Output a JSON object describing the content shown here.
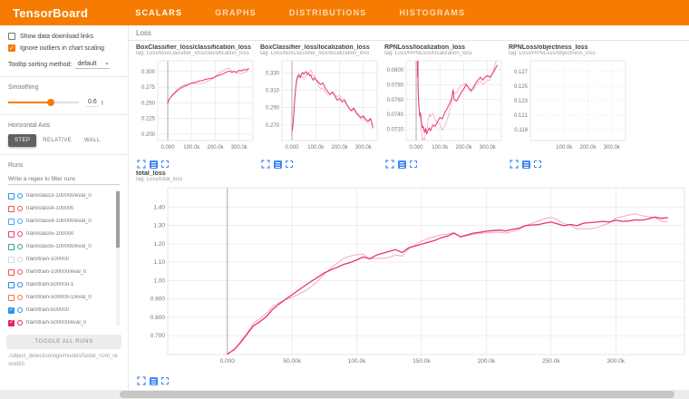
{
  "colors": {
    "accent": "#f57c00",
    "line": "#e8346d",
    "line_raw": "#f5a8c3",
    "icon_blue": "#4285f4"
  },
  "header": {
    "title": "TensorBoard",
    "tabs": [
      {
        "label": "SCALARS",
        "active": true
      },
      {
        "label": "GRAPHS",
        "active": false
      },
      {
        "label": "DISTRIBUTIONS",
        "active": false
      },
      {
        "label": "HISTOGRAMS",
        "active": false
      }
    ]
  },
  "sidebar": {
    "options": [
      {
        "label": "Show data download links",
        "checked": false
      },
      {
        "label": "Ignore outliers in chart scaling",
        "checked": true
      }
    ],
    "tooltip_sort": {
      "label": "Tooltip sorting method:",
      "value": "default"
    },
    "smoothing": {
      "label": "Smoothing",
      "value": "0.6"
    },
    "horizontal_axis": {
      "label": "Horizontal Axis",
      "options": [
        {
          "label": "STEP",
          "active": true
        },
        {
          "label": "RELATIVE",
          "active": false
        },
        {
          "label": "WALL",
          "active": false
        }
      ]
    },
    "runs": {
      "label": "Runs",
      "filter_placeholder": "Write a regex to filter runs",
      "items": [
        {
          "name": "train/class3-100000/eval_0",
          "color": "#2196f3",
          "checked": false
        },
        {
          "name": "train/class4-100000",
          "color": "#ef5350",
          "checked": false
        },
        {
          "name": "train/class4-100000/eval_0",
          "color": "#42a5f5",
          "checked": false
        },
        {
          "name": "train/class5-100000",
          "color": "#ec407a",
          "checked": false
        },
        {
          "name": "train/class5-100000/eval_0",
          "color": "#26a69a",
          "checked": false
        },
        {
          "name": "train/train-100000",
          "color": "#cfd8dc",
          "checked": false
        },
        {
          "name": "train/train-100000/eval_0",
          "color": "#ef5350",
          "checked": false
        },
        {
          "name": "train/train-500000-1",
          "color": "#1e88e5",
          "checked": false
        },
        {
          "name": "train/train-500000-1/eval_0",
          "color": "#ff7043",
          "checked": false
        },
        {
          "name": "train/train-500000",
          "color": "#2196f3",
          "checked": true
        },
        {
          "name": "train/train-500000/eval_0",
          "color": "#e91e63",
          "checked": true
        }
      ],
      "toggle_label": "TOGGLE ALL RUNS",
      "path": "./object_detection/wgs/models/faster_rcnn_resnet50"
    }
  },
  "main": {
    "group_label": "Loss"
  },
  "chart_data": [
    {
      "type": "line",
      "layout": "small",
      "title": "BoxClassifier_loss/classification_loss",
      "tag": "tag: Loss/BoxClassifier_loss/classification_loss",
      "xlabel": "step",
      "ylabel": "loss",
      "xlim": [
        -42,
        358
      ],
      "ylim": [
        0.19,
        0.317
      ],
      "yticks": [
        0.3,
        0.275,
        0.25,
        0.225,
        0.2
      ],
      "ytick_labels": [
        "0.300",
        "0.275",
        "0.250",
        "0.225",
        "0.200"
      ],
      "xticks": [
        0,
        100,
        200,
        300
      ],
      "xtick_labels": [
        "0.000",
        "100.0k",
        "200.0k",
        "300.0k"
      ],
      "jitter": 0.0035,
      "x": [
        0,
        5,
        10,
        20,
        30,
        40,
        55,
        70,
        85,
        100,
        115,
        130,
        145,
        160,
        175,
        190,
        205,
        220,
        235,
        250,
        260,
        270,
        280,
        290,
        300,
        310,
        320,
        330,
        340
      ],
      "y": [
        0.2495,
        0.2545,
        0.2575,
        0.2625,
        0.2655,
        0.2695,
        0.2735,
        0.2765,
        0.2785,
        0.2815,
        0.2825,
        0.2845,
        0.2855,
        0.2875,
        0.2885,
        0.2895,
        0.2925,
        0.2945,
        0.2965,
        0.2995,
        0.3005,
        0.2985,
        0.3,
        0.299,
        0.302,
        0.301,
        0.303,
        0.3025,
        0.3045
      ]
    },
    {
      "type": "line",
      "layout": "small",
      "title": "BoxClassifier_loss/localization_loss",
      "tag": "tag: Loss/BoxClassifier_loss/localization_loss",
      "xlabel": "step",
      "ylabel": "loss",
      "xlim": [
        -42,
        358
      ],
      "ylim": [
        0.252,
        0.344
      ],
      "yticks": [
        0.33,
        0.31,
        0.29,
        0.27
      ],
      "ytick_labels": [
        "0.330",
        "0.310",
        "0.290",
        "0.270"
      ],
      "xticks": [
        0,
        100,
        200,
        300
      ],
      "xtick_labels": [
        "0.000",
        "100.0k",
        "200.0k",
        "300.0k"
      ],
      "jitter": 0.004,
      "x": [
        0,
        3,
        6,
        9,
        12,
        16,
        20,
        25,
        30,
        35,
        40,
        45,
        50,
        55,
        60,
        65,
        70,
        75,
        80,
        85,
        90,
        95,
        100,
        110,
        120,
        130,
        140,
        150,
        160,
        170,
        180,
        190,
        200,
        210,
        220,
        230,
        240,
        250,
        260,
        270,
        280,
        290,
        300,
        310,
        320,
        330,
        335,
        340
      ],
      "y": [
        0.2625,
        0.2665,
        0.2755,
        0.2885,
        0.3005,
        0.3125,
        0.3215,
        0.3255,
        0.3275,
        0.3245,
        0.3285,
        0.3305,
        0.3285,
        0.3305,
        0.3315,
        0.3285,
        0.3295,
        0.3265,
        0.3275,
        0.3235,
        0.3215,
        0.3245,
        0.3225,
        0.3195,
        0.3165,
        0.3185,
        0.3125,
        0.3085,
        0.3055,
        0.3075,
        0.3035,
        0.2985,
        0.3005,
        0.2965,
        0.2985,
        0.2935,
        0.2895,
        0.2865,
        0.2895,
        0.2845,
        0.2815,
        0.2785,
        0.2805,
        0.2765,
        0.2745,
        0.2775,
        0.2725,
        0.2665
      ]
    },
    {
      "type": "line",
      "layout": "small",
      "title": "RPNLoss/localization_loss",
      "tag": "tag: Loss/RPNLoss/localization_loss",
      "xlabel": "step",
      "ylabel": "loss",
      "xlim": [
        -42,
        358
      ],
      "ylim": [
        0.0705,
        0.0812
      ],
      "yticks": [
        0.08,
        0.078,
        0.076,
        0.074,
        0.072
      ],
      "ytick_labels": [
        "0.0800",
        "0.0780",
        "0.0760",
        "0.0740",
        "0.0720"
      ],
      "xticks": [
        0,
        100,
        200,
        300
      ],
      "xtick_labels": [
        "0.000",
        "100.0k",
        "200.0k",
        "300.0k"
      ],
      "jitter": 0.0012,
      "x": [
        0,
        2,
        4,
        5,
        6,
        7,
        8,
        10,
        12,
        15,
        18,
        22,
        26,
        30,
        35,
        40,
        45,
        50,
        55,
        60,
        70,
        80,
        90,
        100,
        110,
        120,
        130,
        140,
        150,
        155,
        160,
        170,
        180,
        190,
        200,
        210,
        220,
        230,
        240,
        250,
        260,
        270,
        280,
        290,
        300,
        310,
        320,
        330,
        340
      ],
      "y": [
        0.086,
        0.098,
        0.082,
        0.096,
        0.079,
        0.09,
        0.0775,
        0.076,
        0.0748,
        0.0738,
        0.0742,
        0.073,
        0.0722,
        0.0724,
        0.0716,
        0.0721,
        0.0714,
        0.0719,
        0.0722,
        0.0718,
        0.0726,
        0.0724,
        0.073,
        0.0736,
        0.0734,
        0.0742,
        0.0748,
        0.0754,
        0.0762,
        0.0772,
        0.076,
        0.0758,
        0.0764,
        0.077,
        0.0774,
        0.078,
        0.0776,
        0.0772,
        0.0776,
        0.0782,
        0.0786,
        0.079,
        0.0786,
        0.079,
        0.0792,
        0.079,
        0.0794,
        0.08,
        0.0806
      ]
    },
    {
      "type": "line",
      "layout": "small",
      "grid_dashed": true,
      "title": "RPNLoss/objectness_loss",
      "tag": "tag: Loss/RPNLoss/objectness_loss",
      "xlabel": "step",
      "ylabel": "loss",
      "xlim": [
        -42,
        358
      ],
      "ylim": [
        0.1175,
        0.1285
      ],
      "yticks": [
        0.127,
        0.125,
        0.123,
        0.121,
        0.119
      ],
      "ytick_labels": [
        "0.127",
        "0.125",
        "0.123",
        "0.121",
        "0.119"
      ],
      "xticks": [
        100,
        200,
        300
      ],
      "xtick_labels": [
        "100.0k",
        "200.0k",
        "300.0k"
      ],
      "jitter": 0,
      "x": [],
      "y": []
    },
    {
      "type": "line",
      "layout": "large",
      "title": "total_loss",
      "tag": "tag: Loss/total_loss",
      "xlabel": "step",
      "ylabel": "loss",
      "xlim": [
        -46,
        353
      ],
      "ylim": [
        0.597,
        1.505
      ],
      "yticks": [
        1.4,
        1.3,
        1.2,
        1.1,
        1.0,
        0.9,
        0.8,
        0.7
      ],
      "ytick_labels": [
        "1.40",
        "1.30",
        "1.20",
        "1.10",
        "1.00",
        "0.900",
        "0.800",
        "0.700"
      ],
      "xticks": [
        0,
        50,
        100,
        150,
        200,
        250,
        300
      ],
      "xtick_labels": [
        "0.000",
        "50.00k",
        "100.0k",
        "150.0k",
        "200.0k",
        "250.0k",
        "300.0k"
      ],
      "jitter": 0.022,
      "x": [
        0,
        5,
        10,
        15,
        20,
        25,
        30,
        35,
        40,
        45,
        50,
        55,
        60,
        65,
        70,
        75,
        80,
        85,
        90,
        95,
        100,
        105,
        110,
        115,
        120,
        125,
        130,
        135,
        140,
        145,
        150,
        155,
        160,
        165,
        170,
        175,
        180,
        185,
        190,
        195,
        200,
        205,
        210,
        215,
        220,
        225,
        230,
        235,
        240,
        245,
        250,
        255,
        260,
        265,
        270,
        275,
        280,
        285,
        290,
        295,
        300,
        305,
        310,
        315,
        320,
        325,
        330,
        335,
        340
      ],
      "y": [
        0.6,
        0.622,
        0.66,
        0.705,
        0.752,
        0.775,
        0.803,
        0.843,
        0.872,
        0.898,
        0.922,
        0.948,
        0.972,
        0.996,
        1.018,
        1.042,
        1.058,
        1.072,
        1.088,
        1.098,
        1.112,
        1.128,
        1.118,
        1.138,
        1.148,
        1.158,
        1.168,
        1.152,
        1.178,
        1.188,
        1.198,
        1.208,
        1.218,
        1.232,
        1.242,
        1.258,
        1.238,
        1.248,
        1.258,
        1.262,
        1.268,
        1.272,
        1.274,
        1.27,
        1.278,
        1.284,
        1.298,
        1.302,
        1.304,
        1.312,
        1.318,
        1.308,
        1.298,
        1.305,
        1.298,
        1.312,
        1.315,
        1.318,
        1.322,
        1.318,
        1.328,
        1.322,
        1.324,
        1.33,
        1.328,
        1.335,
        1.345,
        1.338,
        1.342
      ]
    }
  ]
}
